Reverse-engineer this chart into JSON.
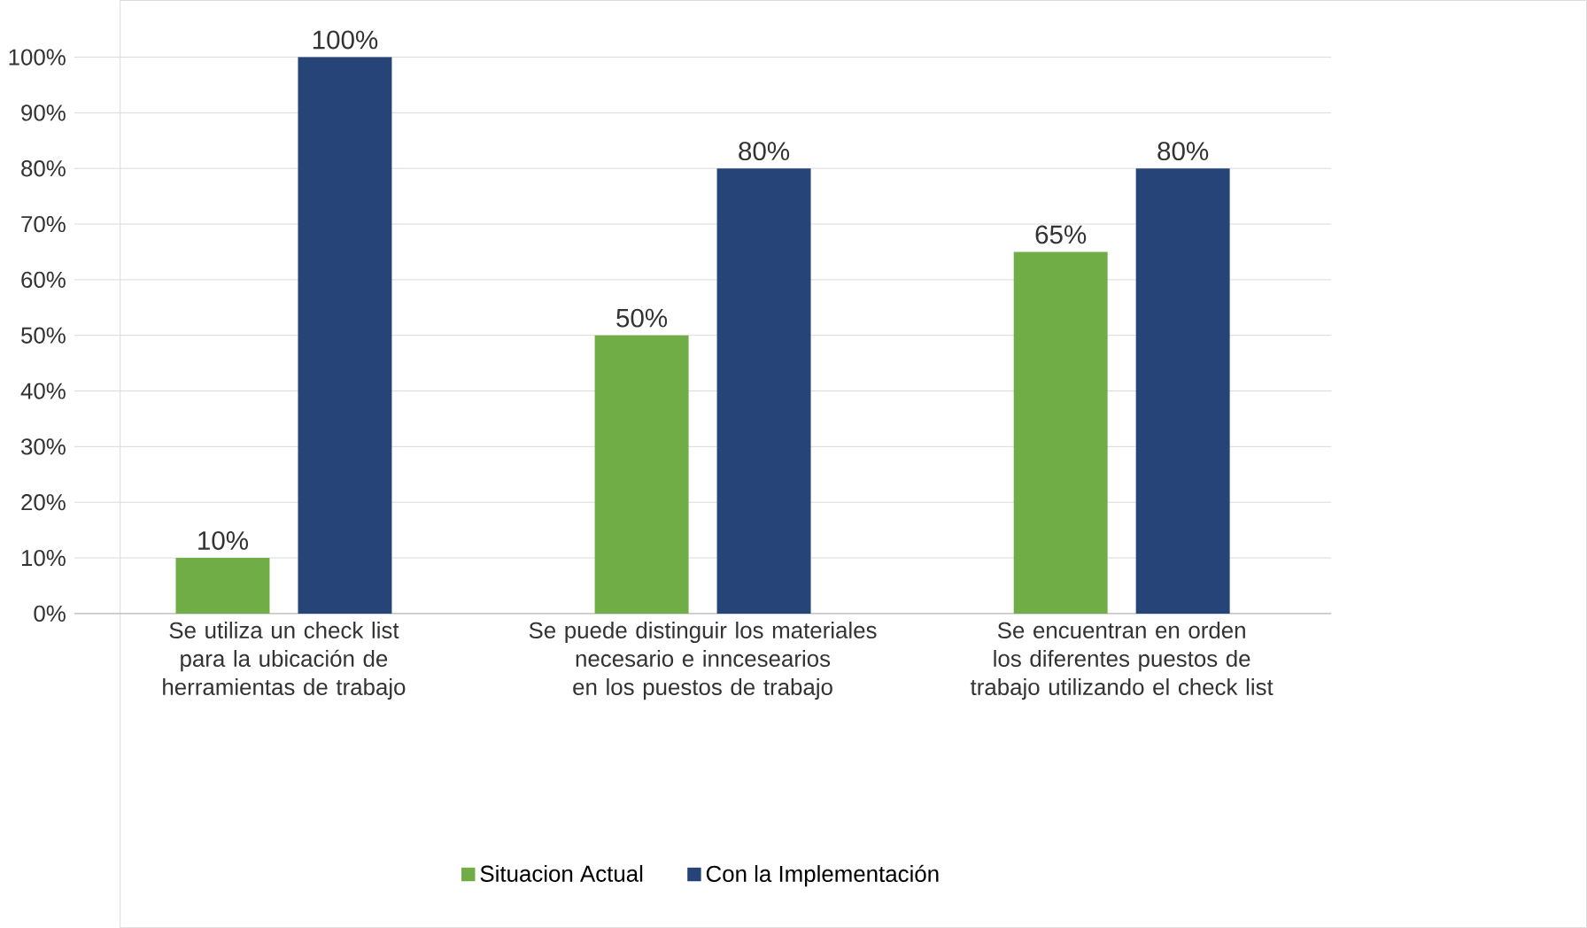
{
  "chart_data": {
    "type": "bar",
    "categories": [
      "Se utiliza un check list para la ubicación de herramientas de trabajo",
      "Se puede distinguir los materiales necesario e inncesearios en los puestos de trabajo",
      "Se encuentran en orden los diferentes puestos de trabajo utilizando el check list"
    ],
    "series": [
      {
        "name": "Situacion Actual",
        "color": "#70ad47",
        "values": [
          10,
          50,
          65
        ],
        "value_labels": [
          "10%",
          "50%",
          "65%"
        ]
      },
      {
        "name": "Con la Implementación",
        "color": "#264478",
        "values": [
          100,
          80,
          80
        ],
        "value_labels": [
          "100%",
          "80%",
          "80%"
        ]
      }
    ],
    "ylim": [
      0,
      100
    ],
    "yticks": [
      {
        "value": 0,
        "label": "0%"
      },
      {
        "value": 10,
        "label": "10%"
      },
      {
        "value": 20,
        "label": "20%"
      },
      {
        "value": 30,
        "label": "30%"
      },
      {
        "value": 40,
        "label": "40%"
      },
      {
        "value": 50,
        "label": "50%"
      },
      {
        "value": 60,
        "label": "60%"
      },
      {
        "value": 70,
        "label": "70%"
      },
      {
        "value": 80,
        "label": "80%"
      },
      {
        "value": 90,
        "label": "90%"
      },
      {
        "value": 100,
        "label": "100%"
      }
    ],
    "grid": "y",
    "legend": "bottom"
  }
}
